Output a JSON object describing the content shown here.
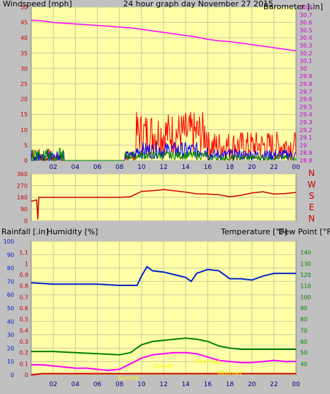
{
  "title": "24 hour graph day   November 27 2015",
  "colors": {
    "background": "#c0c0c0",
    "plot_bg": "#ffffa8",
    "grid": "#c8c8a0",
    "wind": "#ff0000",
    "wind_gust": "#0000ff",
    "wind_avg": "#008000",
    "barometer": "#ff00ff",
    "direction": "#d00000",
    "humidity": "#0022cc",
    "temperature": "#008000",
    "dew_point": "#ff00ff",
    "rainfall": "#cc0000",
    "annotation": "#ffff00"
  },
  "x_ticks": [
    "02",
    "04",
    "06",
    "08",
    "10",
    "12",
    "14",
    "16",
    "18",
    "20",
    "22",
    "00"
  ],
  "chart_data": [
    {
      "type": "line",
      "id": "wind_barometer",
      "ylabel_left": "Windspeed [mph]",
      "ylabel_right": "Barometer [.in]",
      "ylim_left": [
        0,
        50
      ],
      "ylim_right": [
        28.8,
        30.8
      ],
      "yticks_left": [
        "0",
        "5",
        "10",
        "15",
        "20",
        "25",
        "30",
        "35",
        "40",
        "45",
        "50"
      ],
      "yticks_right": [
        "28.8",
        "28.9",
        "29",
        "29.1",
        "29.2",
        "29.3",
        "29.4",
        "29.5",
        "29.6",
        "29.7",
        "29.8",
        "29.9",
        "30",
        "30.1",
        "30.2",
        "30.3",
        "30.4",
        "30.5",
        "30.6",
        "30.7",
        "30.8"
      ],
      "series": [
        {
          "name": "Barometer [.in]",
          "axis": "right",
          "x": [
            0,
            1,
            2,
            3,
            4,
            5,
            6,
            7,
            8,
            9,
            10,
            11,
            12,
            13,
            14,
            15,
            16,
            17,
            18,
            19,
            20,
            21,
            22,
            23,
            24
          ],
          "values": [
            30.63,
            30.62,
            30.6,
            30.59,
            30.58,
            30.57,
            30.56,
            30.55,
            30.54,
            30.53,
            30.51,
            30.49,
            30.47,
            30.45,
            30.43,
            30.41,
            30.38,
            30.36,
            30.35,
            30.33,
            30.31,
            30.29,
            30.27,
            30.25,
            30.23
          ]
        }
      ]
    },
    {
      "type": "line",
      "id": "wind_direction",
      "ylim": [
        0,
        360
      ],
      "yticks": [
        "0",
        "90",
        "180",
        "270",
        "360"
      ],
      "compass": [
        "N",
        "W",
        "S",
        "E",
        "N"
      ],
      "series": [
        {
          "x": [
            0,
            0.5,
            0.6,
            0.7,
            1,
            2,
            4,
            6,
            8,
            9,
            10,
            11,
            12,
            13,
            14,
            15,
            16,
            17,
            18,
            19,
            20,
            21,
            22,
            23,
            24
          ],
          "values": [
            150,
            160,
            10,
            180,
            180,
            180,
            180,
            180,
            180,
            185,
            215,
            225,
            240,
            230,
            235,
            220,
            205,
            200,
            185,
            190,
            205,
            220,
            215,
            210,
            220
          ]
        }
      ]
    },
    {
      "type": "line",
      "id": "rain_humidity_temp",
      "ylabel_left_1": "Rainfall [.in]",
      "ylabel_left_2": "Humidity [%]",
      "ylabel_right_1": "Temperature [°F]",
      "ylabel_right_2": "Dew Point [°F]",
      "ylim_humidity": [
        0,
        100
      ],
      "ylim_rain": [
        0,
        1.2
      ],
      "ylim_temp": [
        30,
        150
      ],
      "yticks_humidity": [
        "0",
        "10",
        "20",
        "30",
        "40",
        "50",
        "60",
        "70",
        "80",
        "90",
        "100"
      ],
      "yticks_rain": [
        "0",
        "0.1",
        "0.2",
        "0.3",
        "0.4",
        "0.5",
        "0.6",
        "0.7",
        "0.8",
        "0.9",
        "1",
        "1.1"
      ],
      "yticks_temp": [
        "40",
        "50",
        "60",
        "70",
        "80",
        "90",
        "100",
        "110",
        "120",
        "130",
        "140"
      ],
      "series": [
        {
          "name": "Humidity [%]",
          "x": [
            0,
            2,
            4,
            6,
            8,
            9,
            9.6,
            10,
            10.5,
            11,
            12,
            13,
            14,
            14.5,
            15,
            16,
            17,
            18,
            19,
            20,
            21,
            22,
            23,
            24
          ],
          "values": [
            69,
            68,
            68,
            68,
            67,
            67,
            67,
            74,
            81,
            78,
            77,
            75,
            73,
            70,
            76,
            79,
            78,
            72,
            72,
            71,
            74,
            76,
            76,
            76
          ]
        },
        {
          "name": "Temperature [°F]",
          "x": [
            0,
            2,
            4,
            6,
            8,
            9,
            10,
            11,
            12,
            13,
            14,
            15,
            16,
            17,
            18,
            19,
            20,
            21,
            22,
            23,
            24
          ],
          "values": [
            51,
            51,
            50,
            49,
            48,
            50,
            57,
            60,
            61,
            62,
            63,
            62,
            60,
            56,
            54,
            53,
            53,
            53,
            53,
            53,
            53
          ]
        },
        {
          "name": "Dew Point [°F]",
          "x": [
            0,
            1,
            2,
            3,
            4,
            5,
            6,
            7,
            8,
            9,
            10,
            11,
            12,
            13,
            14,
            15,
            16,
            17,
            18,
            19,
            20,
            21,
            22,
            23,
            24
          ],
          "values": [
            39,
            39,
            38,
            37,
            36,
            36,
            35,
            34,
            35,
            40,
            45,
            48,
            49,
            50,
            50,
            49,
            46,
            43,
            42,
            41,
            41,
            42,
            43,
            42,
            42
          ]
        },
        {
          "name": "Rainfall [.in]",
          "x": [
            0,
            1,
            2,
            3,
            4,
            5,
            6,
            7,
            8,
            9,
            10,
            11,
            12,
            13,
            14,
            15,
            16,
            17,
            18,
            19,
            20,
            21,
            22,
            23,
            24
          ],
          "values": [
            0,
            0.01,
            0.01,
            0.01,
            0.01,
            0.01,
            0.01,
            0.01,
            0.01,
            0.01,
            0.01,
            0.01,
            0.01,
            0.01,
            0.01,
            0.01,
            0.01,
            0.01,
            0.01,
            0.01,
            0.01,
            0.01,
            0.01,
            0.01,
            0.01
          ]
        }
      ],
      "annotations": [
        "Sunrise",
        "Sunset",
        "Moonrise",
        "Moonset"
      ]
    }
  ]
}
